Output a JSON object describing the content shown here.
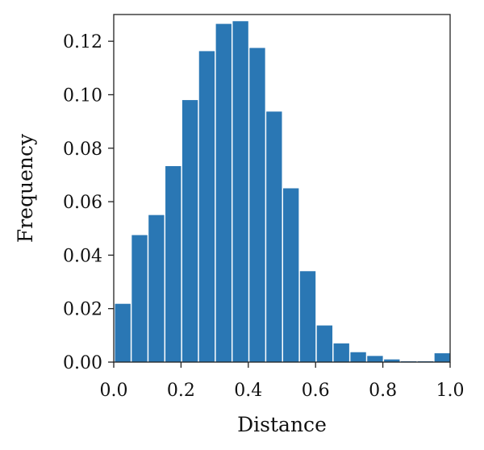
{
  "chart_data": {
    "type": "bar",
    "subtype": "histogram",
    "title": "",
    "xlabel": "Distance",
    "ylabel": "Frequency",
    "xlim": [
      0.0,
      1.0
    ],
    "ylim": [
      0.0,
      0.13
    ],
    "xticks": [
      "0.0",
      "0.2",
      "0.4",
      "0.6",
      "0.8",
      "1.0"
    ],
    "yticks": [
      "0.00",
      "0.02",
      "0.04",
      "0.06",
      "0.08",
      "0.10",
      "0.12"
    ],
    "bin_width": 0.05,
    "bins": [
      {
        "x0": 0.0,
        "x1": 0.05,
        "value": 0.0218
      },
      {
        "x0": 0.05,
        "x1": 0.1,
        "value": 0.0475
      },
      {
        "x0": 0.1,
        "x1": 0.15,
        "value": 0.055
      },
      {
        "x0": 0.15,
        "x1": 0.2,
        "value": 0.0733
      },
      {
        "x0": 0.2,
        "x1": 0.25,
        "value": 0.098
      },
      {
        "x0": 0.25,
        "x1": 0.3,
        "value": 0.1163
      },
      {
        "x0": 0.3,
        "x1": 0.35,
        "value": 0.1265
      },
      {
        "x0": 0.35,
        "x1": 0.4,
        "value": 0.1275
      },
      {
        "x0": 0.4,
        "x1": 0.45,
        "value": 0.1175
      },
      {
        "x0": 0.45,
        "x1": 0.5,
        "value": 0.0937
      },
      {
        "x0": 0.5,
        "x1": 0.55,
        "value": 0.065
      },
      {
        "x0": 0.55,
        "x1": 0.6,
        "value": 0.034
      },
      {
        "x0": 0.6,
        "x1": 0.65,
        "value": 0.0137
      },
      {
        "x0": 0.65,
        "x1": 0.7,
        "value": 0.007
      },
      {
        "x0": 0.7,
        "x1": 0.75,
        "value": 0.0037
      },
      {
        "x0": 0.75,
        "x1": 0.8,
        "value": 0.0023
      },
      {
        "x0": 0.8,
        "x1": 0.85,
        "value": 0.001
      },
      {
        "x0": 0.85,
        "x1": 0.9,
        "value": 0.0003
      },
      {
        "x0": 0.9,
        "x1": 0.95,
        "value": 0.0003
      },
      {
        "x0": 0.95,
        "x1": 1.0,
        "value": 0.0033
      }
    ],
    "bar_color": "#2a77b4",
    "grid": false,
    "legend": "none"
  }
}
